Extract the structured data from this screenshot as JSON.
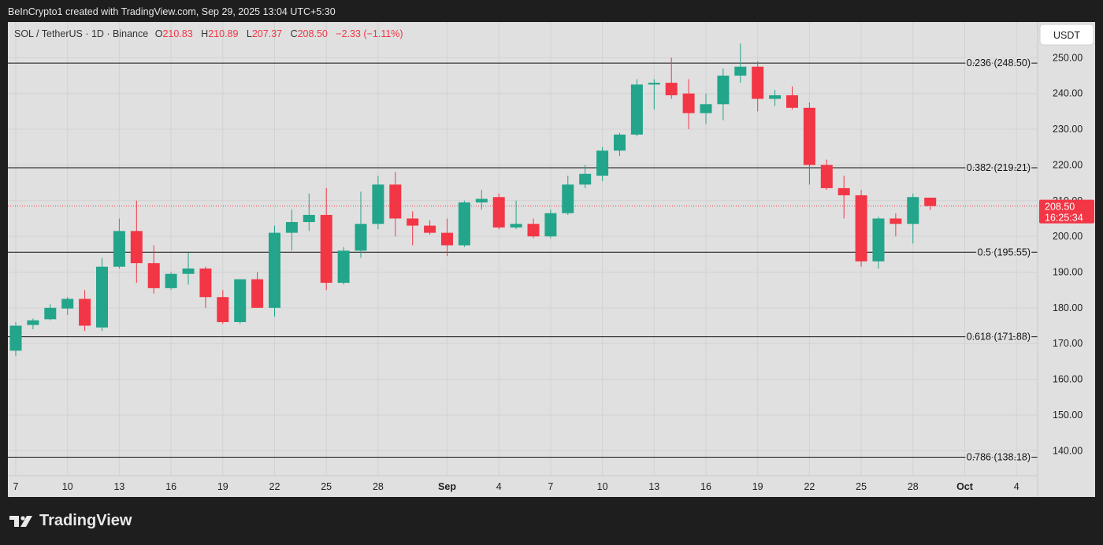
{
  "header": {
    "created_text": "BeInCrypto1 created with TradingView.com, Sep 29, 2025 13:04 UTC+5:30"
  },
  "footer": {
    "brand": "TradingView",
    "logo_icon": "tradingview-logo-icon"
  },
  "colors": {
    "up": "#22a58a",
    "down": "#f23645",
    "background": "#e0e0e0",
    "frame": "#1e1e1e"
  },
  "chart_data": {
    "type": "candlestick",
    "symbol_line": {
      "symbol": "SOL / TetherUS · 1D · Binance",
      "o_label": "O",
      "o_value": "210.83",
      "h_label": "H",
      "h_value": "210.89",
      "l_label": "L",
      "l_value": "207.37",
      "c_label": "C",
      "c_value": "208.50",
      "change": "−2.33 (−1.11%)"
    },
    "currency": "USDT",
    "ylim": [
      133,
      260
    ],
    "y_ticks": [
      "140.00",
      "150.00",
      "160.00",
      "170.00",
      "180.00",
      "190.00",
      "200.00",
      "210.00",
      "220.00",
      "230.00",
      "240.00",
      "250.00"
    ],
    "x_tick_labels": [
      {
        "label": "7",
        "day": 0
      },
      {
        "label": "10",
        "day": 3
      },
      {
        "label": "13",
        "day": 6
      },
      {
        "label": "16",
        "day": 9
      },
      {
        "label": "19",
        "day": 12
      },
      {
        "label": "22",
        "day": 15
      },
      {
        "label": "25",
        "day": 18
      },
      {
        "label": "28",
        "day": 21
      },
      {
        "label": "Sep",
        "day": 25,
        "bold": true
      },
      {
        "label": "4",
        "day": 28
      },
      {
        "label": "7",
        "day": 31
      },
      {
        "label": "10",
        "day": 34
      },
      {
        "label": "13",
        "day": 37
      },
      {
        "label": "16",
        "day": 40
      },
      {
        "label": "19",
        "day": 43
      },
      {
        "label": "22",
        "day": 46
      },
      {
        "label": "25",
        "day": 49
      },
      {
        "label": "28",
        "day": 52
      },
      {
        "label": "Oct",
        "day": 55,
        "bold": true
      },
      {
        "label": "4",
        "day": 58
      }
    ],
    "fib_levels": [
      {
        "label": "0.236 (248.50)",
        "value": 248.5
      },
      {
        "label": "0.382 (219.21)",
        "value": 219.21
      },
      {
        "label": "0.5 (195.55)",
        "value": 195.55
      },
      {
        "label": "0.618 (171.88)",
        "value": 171.88
      },
      {
        "label": "0.786 (138.18)",
        "value": 138.18
      }
    ],
    "last_price": {
      "value": 208.5,
      "price_label": "208.50",
      "countdown": "16:25:34",
      "behind_label": "210.00"
    },
    "candles": [
      {
        "o": 168,
        "h": 176,
        "l": 166.5,
        "c": 175
      },
      {
        "o": 175.2,
        "h": 177,
        "l": 174,
        "c": 176.5
      },
      {
        "o": 176.8,
        "h": 181,
        "l": 176.5,
        "c": 180
      },
      {
        "o": 179.8,
        "h": 183,
        "l": 178,
        "c": 182.5
      },
      {
        "o": 182.5,
        "h": 185,
        "l": 173.5,
        "c": 175
      },
      {
        "o": 174.5,
        "h": 194,
        "l": 173.5,
        "c": 191.5
      },
      {
        "o": 191.5,
        "h": 205,
        "l": 191,
        "c": 201.5
      },
      {
        "o": 201.5,
        "h": 210,
        "l": 187,
        "c": 192.5
      },
      {
        "o": 192.5,
        "h": 197.5,
        "l": 184,
        "c": 185.5
      },
      {
        "o": 185.5,
        "h": 190,
        "l": 185,
        "c": 189.5
      },
      {
        "o": 189.5,
        "h": 195.5,
        "l": 186.5,
        "c": 191
      },
      {
        "o": 191,
        "h": 191.5,
        "l": 180,
        "c": 183
      },
      {
        "o": 183,
        "h": 185,
        "l": 175.5,
        "c": 176
      },
      {
        "o": 176,
        "h": 188,
        "l": 175.5,
        "c": 188
      },
      {
        "o": 188,
        "h": 190,
        "l": 180,
        "c": 180
      },
      {
        "o": 180,
        "h": 203,
        "l": 177.5,
        "c": 201
      },
      {
        "o": 201,
        "h": 207.5,
        "l": 196,
        "c": 204
      },
      {
        "o": 204,
        "h": 212,
        "l": 201.5,
        "c": 206
      },
      {
        "o": 206,
        "h": 213.5,
        "l": 185,
        "c": 187
      },
      {
        "o": 187,
        "h": 197,
        "l": 186.5,
        "c": 196
      },
      {
        "o": 196,
        "h": 212.5,
        "l": 194,
        "c": 203.5
      },
      {
        "o": 203.5,
        "h": 217,
        "l": 202,
        "c": 214.5
      },
      {
        "o": 214.5,
        "h": 218,
        "l": 200,
        "c": 205
      },
      {
        "o": 205,
        "h": 207,
        "l": 197.5,
        "c": 203
      },
      {
        "o": 203,
        "h": 204.5,
        "l": 200.5,
        "c": 201
      },
      {
        "o": 201,
        "h": 205,
        "l": 194.5,
        "c": 197.5
      },
      {
        "o": 197.5,
        "h": 210,
        "l": 197,
        "c": 209.5
      },
      {
        "o": 209.5,
        "h": 213,
        "l": 207.5,
        "c": 210.5
      },
      {
        "o": 211,
        "h": 212,
        "l": 202,
        "c": 202.5
      },
      {
        "o": 202.5,
        "h": 210,
        "l": 202,
        "c": 203.5
      },
      {
        "o": 203.5,
        "h": 205,
        "l": 199.5,
        "c": 200
      },
      {
        "o": 200,
        "h": 207.5,
        "l": 199.5,
        "c": 206.5
      },
      {
        "o": 206.5,
        "h": 217,
        "l": 206,
        "c": 214.5
      },
      {
        "o": 214.5,
        "h": 220,
        "l": 213.5,
        "c": 217.5
      },
      {
        "o": 217,
        "h": 225,
        "l": 215.5,
        "c": 224
      },
      {
        "o": 224,
        "h": 229,
        "l": 222.5,
        "c": 228.5
      },
      {
        "o": 228.5,
        "h": 244,
        "l": 228,
        "c": 242.5
      },
      {
        "o": 242.5,
        "h": 244,
        "l": 235.5,
        "c": 243
      },
      {
        "o": 243,
        "h": 250,
        "l": 238.5,
        "c": 239.5
      },
      {
        "o": 240,
        "h": 244,
        "l": 230,
        "c": 234.5
      },
      {
        "o": 234.5,
        "h": 240,
        "l": 231.5,
        "c": 237
      },
      {
        "o": 237,
        "h": 247,
        "l": 232.5,
        "c": 245
      },
      {
        "o": 245,
        "h": 254,
        "l": 243,
        "c": 247.5
      },
      {
        "o": 247.5,
        "h": 249,
        "l": 235,
        "c": 238.5
      },
      {
        "o": 238.5,
        "h": 241,
        "l": 236.5,
        "c": 239.5
      },
      {
        "o": 239.5,
        "h": 242,
        "l": 235.5,
        "c": 236
      },
      {
        "o": 236,
        "h": 237.5,
        "l": 214.5,
        "c": 220
      },
      {
        "o": 220,
        "h": 221.5,
        "l": 213,
        "c": 213.5
      },
      {
        "o": 213.5,
        "h": 217,
        "l": 205,
        "c": 211.5
      },
      {
        "o": 211.5,
        "h": 213,
        "l": 191.5,
        "c": 193
      },
      {
        "o": 193,
        "h": 205.5,
        "l": 191,
        "c": 205
      },
      {
        "o": 205,
        "h": 206.5,
        "l": 200,
        "c": 203.5
      },
      {
        "o": 203.5,
        "h": 212,
        "l": 198,
        "c": 211
      },
      {
        "o": 210.83,
        "h": 210.89,
        "l": 207.37,
        "c": 208.5
      }
    ]
  }
}
